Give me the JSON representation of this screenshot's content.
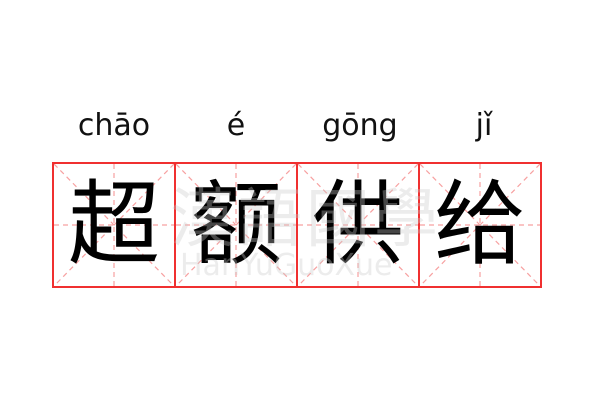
{
  "accent_color": "#f03030",
  "guide_color": "#f7a0a0",
  "characters": [
    {
      "pinyin": "chāo",
      "hanzi": "超"
    },
    {
      "pinyin": "é",
      "hanzi": "额"
    },
    {
      "pinyin": "gōng",
      "hanzi": "供"
    },
    {
      "pinyin": "jǐ",
      "hanzi": "给"
    }
  ],
  "watermark": {
    "chinese": "漢語國學",
    "latin": "HanYuGuoXue"
  }
}
